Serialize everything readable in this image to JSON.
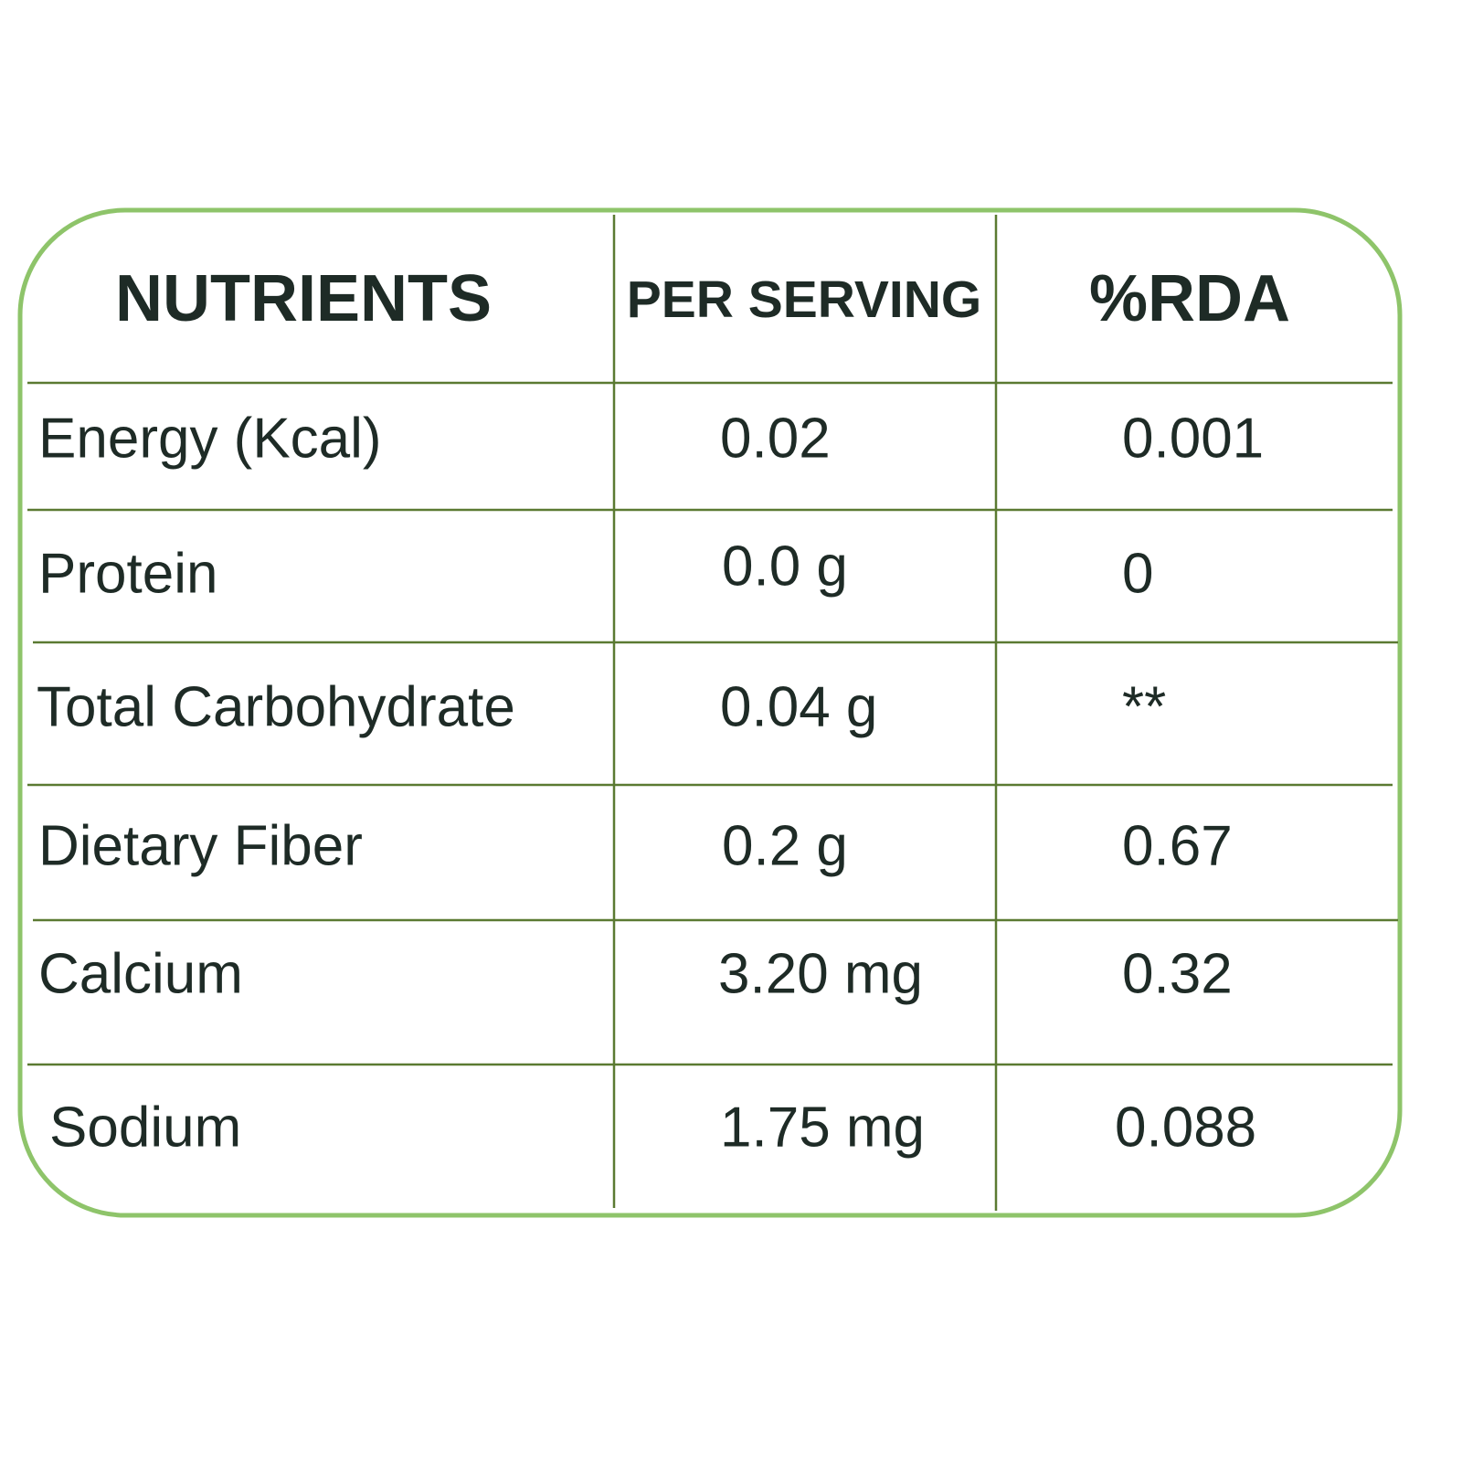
{
  "table": {
    "header": [
      "NUTRIENTS",
      "PER SERVING",
      "%RDA"
    ],
    "rows": [
      [
        "Energy (Kcal)",
        "0.02",
        "0.001"
      ],
      [
        "Protein",
        "0.0 g",
        "0"
      ],
      [
        "Total Carbohydrate",
        "0.04 g",
        "**"
      ],
      [
        "Dietary Fiber",
        "0.2 g",
        "0.67"
      ],
      [
        "Calcium",
        "3.20 mg",
        "0.32"
      ],
      [
        "Sodium",
        "1.75 mg",
        "0.088"
      ]
    ]
  }
}
